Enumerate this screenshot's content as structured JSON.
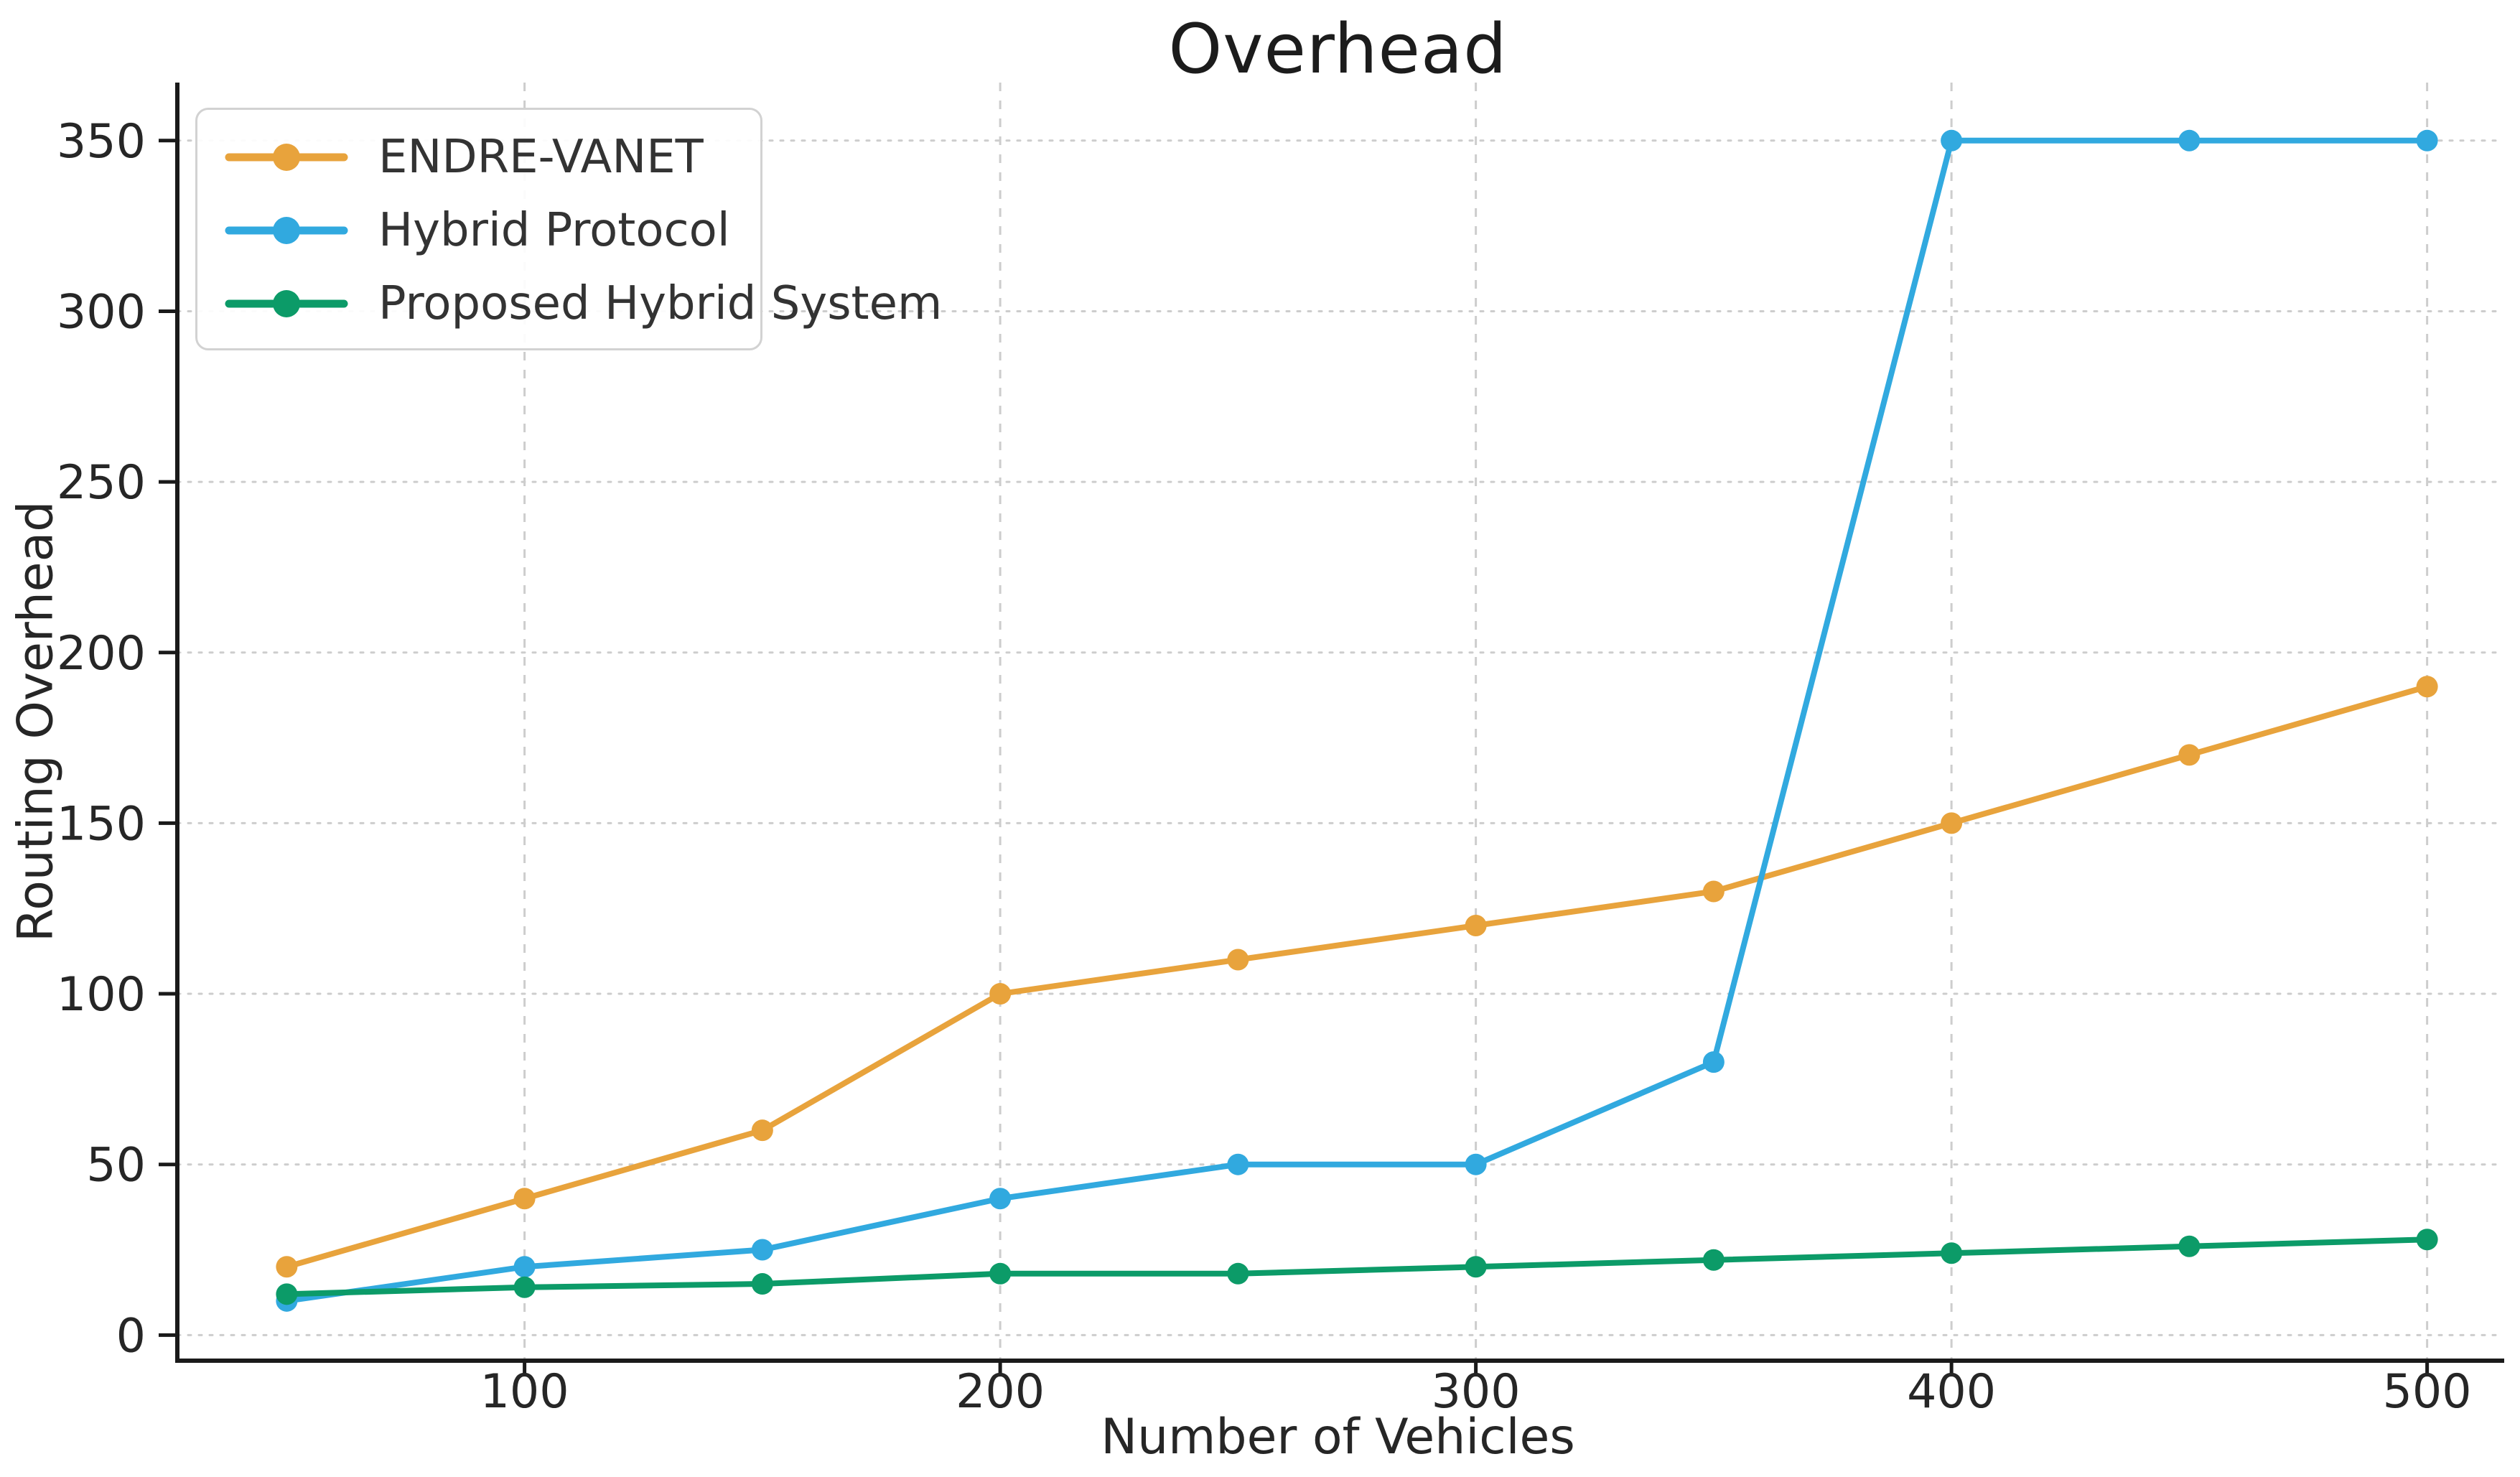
{
  "figure": {
    "background": "#ffffff"
  },
  "chart_data": {
    "type": "line",
    "title": "Overhead",
    "xlabel": "Number of Vehicles",
    "ylabel": "Routing Overhead",
    "x": [
      50,
      100,
      150,
      200,
      250,
      300,
      350,
      400,
      450,
      500
    ],
    "series": [
      {
        "name": "ENDRE-VANET",
        "color": "#E8A33C",
        "values": [
          20,
          40,
          60,
          100,
          110,
          120,
          130,
          150,
          170,
          190
        ]
      },
      {
        "name": "Hybrid Protocol",
        "color": "#31A9DF",
        "values": [
          10,
          20,
          25,
          40,
          50,
          50,
          80,
          350,
          350,
          350
        ]
      },
      {
        "name": "Proposed Hybrid System",
        "color": "#0C9B68",
        "values": [
          12,
          14,
          15,
          18,
          18,
          20,
          22,
          24,
          26,
          28
        ]
      }
    ],
    "xticks": [
      100,
      200,
      300,
      400,
      500
    ],
    "yticks": [
      0,
      50,
      100,
      150,
      200,
      250,
      300,
      350
    ],
    "xlim": [
      27,
      515
    ],
    "ylim": [
      -7.5,
      367
    ],
    "grid": true,
    "legend_position": "upper left",
    "axis_color": "#1a1a1a",
    "grid_color": "#cdcdcd",
    "text_color": "#262626"
  }
}
